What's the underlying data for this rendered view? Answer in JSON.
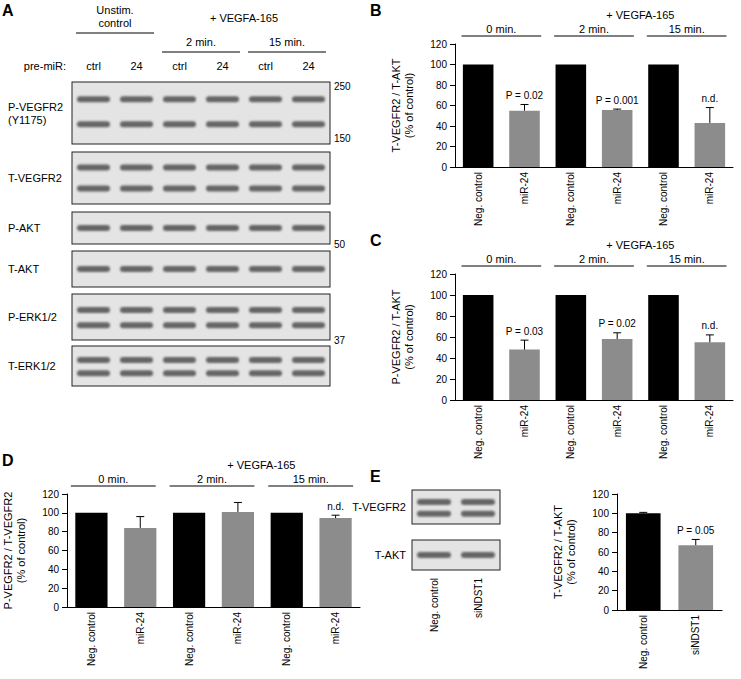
{
  "chart_data": [
    {
      "type": "bar",
      "panel": "B",
      "categories": [
        "Neg. control",
        "miR-24",
        "Neg. control",
        "miR-24",
        "Neg. control",
        "miR-24"
      ],
      "values": [
        100,
        55,
        100,
        55.5,
        100,
        43
      ],
      "errors": [
        null,
        6,
        null,
        1,
        null,
        15
      ],
      "annotations": [
        null,
        "P = 0.02",
        null,
        "P = 0.001",
        null,
        "n.d."
      ],
      "colors": [
        "#000000",
        "#8c8c8c",
        "#000000",
        "#8c8c8c",
        "#000000",
        "#8c8c8c"
      ],
      "groups": [
        "0 min.",
        "2 min.",
        "15 min."
      ],
      "treatment": {
        "label": "+ VEGFA-165",
        "groups": [
          1,
          2
        ]
      },
      "y_label": "T-VEGFR2 / T-AKT\n(% of control)",
      "ylim": [
        0,
        120
      ],
      "yticks": [
        0,
        20,
        40,
        60,
        80,
        100,
        120
      ],
      "grid": false
    },
    {
      "type": "bar",
      "panel": "C",
      "categories": [
        "Neg. control",
        "miR-24",
        "Neg. control",
        "miR-24",
        "Neg. control",
        "miR-24"
      ],
      "values": [
        100,
        48,
        100,
        58,
        100,
        55
      ],
      "errors": [
        null,
        9,
        null,
        6,
        null,
        7
      ],
      "annotations": [
        null,
        "P = 0.03",
        null,
        "P = 0.02",
        null,
        "n.d."
      ],
      "colors": [
        "#000000",
        "#8c8c8c",
        "#000000",
        "#8c8c8c",
        "#000000",
        "#8c8c8c"
      ],
      "groups": [
        "0 min.",
        "2 min.",
        "15 min."
      ],
      "treatment": {
        "label": "+ VEGFA-165",
        "groups": [
          1,
          2
        ]
      },
      "y_label": "P-VEGFR2 / T-AKT\n(% of control)",
      "ylim": [
        0,
        120
      ],
      "yticks": [
        0,
        20,
        40,
        60,
        80,
        100,
        120
      ],
      "grid": false
    },
    {
      "type": "bar",
      "panel": "D",
      "categories": [
        "Neg. control",
        "miR-24",
        "Neg. control",
        "miR-24",
        "Neg. control",
        "miR-24"
      ],
      "values": [
        100,
        84,
        100,
        101,
        100,
        94.5
      ],
      "errors": [
        null,
        12,
        null,
        10,
        null,
        3
      ],
      "annotations": [
        null,
        null,
        null,
        null,
        null,
        "n.d."
      ],
      "colors": [
        "#000000",
        "#8c8c8c",
        "#000000",
        "#8c8c8c",
        "#000000",
        "#8c8c8c"
      ],
      "groups": [
        "0 min.",
        "2 min.",
        "15 min."
      ],
      "treatment": {
        "label": "+ VEGFA-165",
        "groups": [
          1,
          2
        ]
      },
      "y_label": "P-VEGFR2 / T-VEGFR2\n(% of control)",
      "ylim": [
        0,
        120
      ],
      "yticks": [
        0,
        20,
        40,
        60,
        80,
        100,
        120
      ],
      "grid": false
    },
    {
      "type": "bar",
      "panel": "E",
      "categories": [
        "Neg. control",
        "siNDST1"
      ],
      "values": [
        100,
        67
      ],
      "errors": [
        1,
        6
      ],
      "annotations": [
        null,
        "P = 0.05"
      ],
      "colors": [
        "#000000",
        "#8c8c8c"
      ],
      "y_label": "T-VEGFR2 / T-AKT\n(% of control)",
      "ylim": [
        0,
        120
      ],
      "yticks": [
        0,
        20,
        40,
        60,
        80,
        100,
        120
      ],
      "grid": false
    }
  ],
  "blot_a": {
    "panel": "A",
    "lane_header": "pre-miR:",
    "conditions": [
      {
        "label": "Unstim.\ncontrol",
        "lanes": [
          "ctrl",
          "24"
        ]
      },
      {
        "label": "2 min.",
        "lanes": [
          "ctrl",
          "24"
        ]
      },
      {
        "label": "15 min.",
        "lanes": [
          "ctrl",
          "24"
        ]
      }
    ],
    "treatment": {
      "label": "+ VEGFA-165",
      "conditions": [
        1,
        2
      ]
    },
    "rows": [
      {
        "label": "P-VEGFR2\n(Y1175)",
        "markers": [
          250,
          150
        ]
      },
      {
        "label": "T-VEGFR2"
      },
      {
        "label": "P-AKT",
        "markers": [
          50
        ]
      },
      {
        "label": "T-AKT"
      },
      {
        "label": "P-ERK1/2",
        "markers": [
          37
        ]
      },
      {
        "label": "T-ERK1/2"
      }
    ]
  },
  "blot_e": {
    "rows": [
      "T-VEGFR2",
      "T-AKT"
    ],
    "lanes": [
      "Neg. control",
      "siNDST1"
    ]
  }
}
